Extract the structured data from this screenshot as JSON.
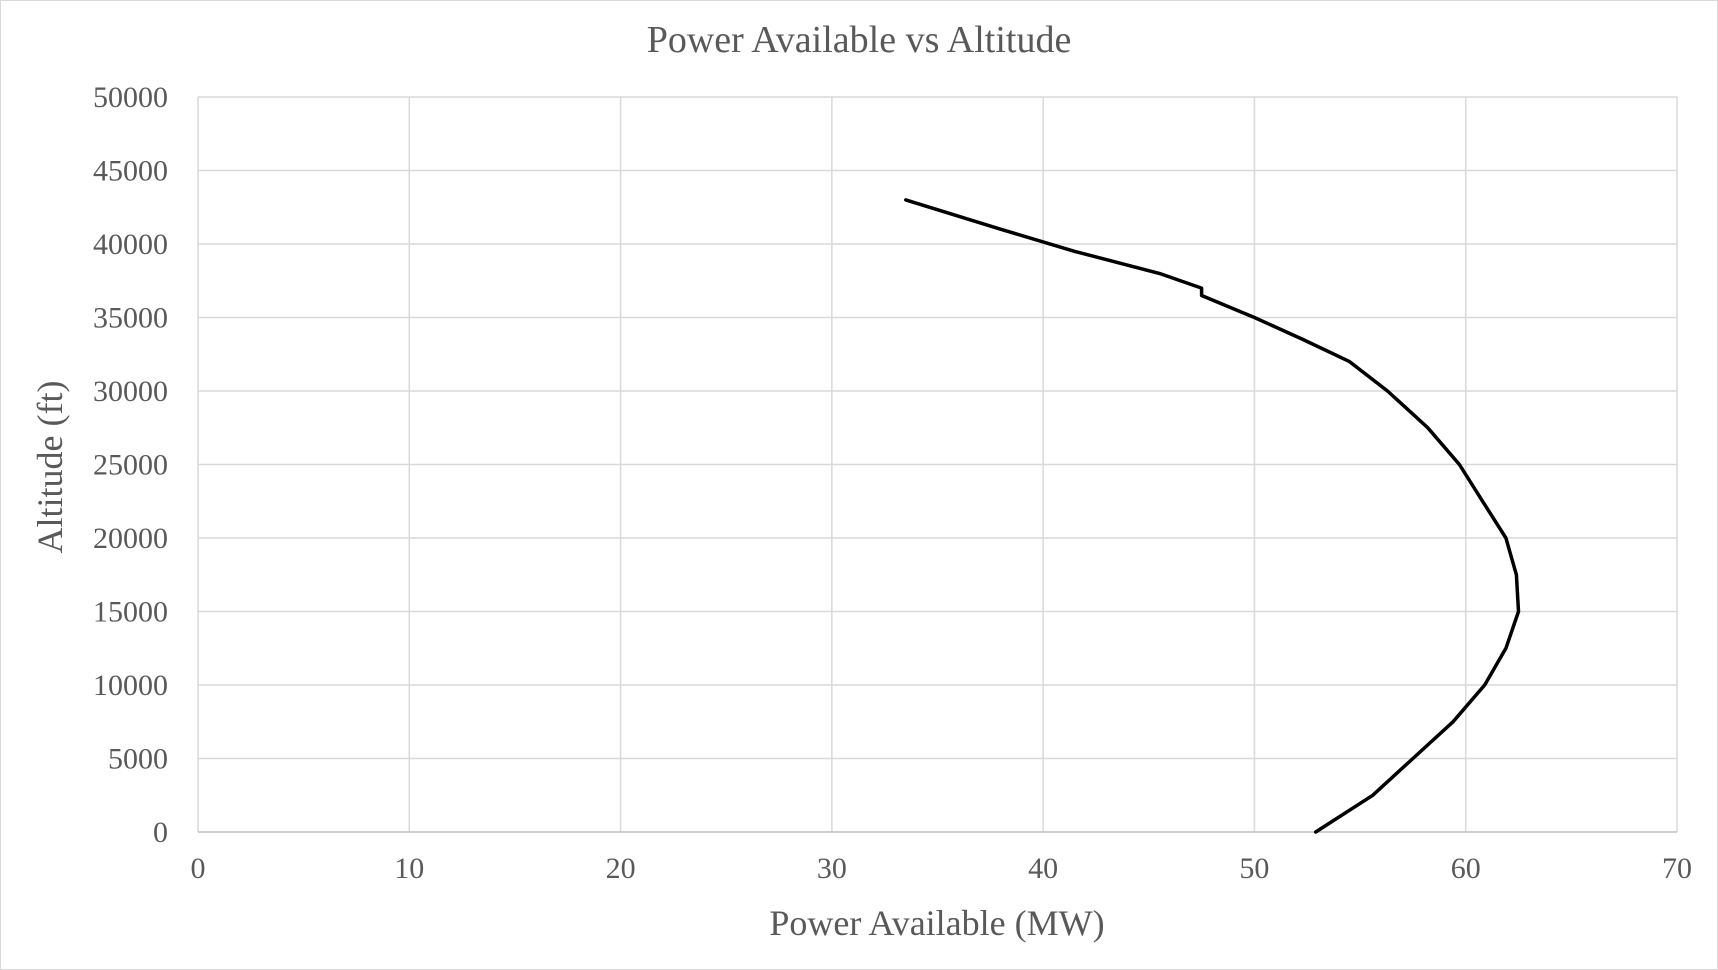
{
  "chart_data": {
    "type": "line",
    "title": "Power Available vs Altitude",
    "xlabel": "Power Available (MW)",
    "ylabel": "Altitude (ft)",
    "xlim": [
      0,
      70
    ],
    "ylim": [
      0,
      50000
    ],
    "xticks": [
      "0",
      "10",
      "20",
      "30",
      "40",
      "50",
      "60",
      "70"
    ],
    "yticks": [
      "0",
      "5000",
      "10000",
      "15000",
      "20000",
      "25000",
      "30000",
      "35000",
      "40000",
      "45000",
      "50000"
    ],
    "grid": true,
    "legend": "none",
    "series": [
      {
        "color": "#000000",
        "points": [
          {
            "x": 52.9,
            "y": 0
          },
          {
            "x": 55.6,
            "y": 2500
          },
          {
            "x": 57.5,
            "y": 5000
          },
          {
            "x": 59.4,
            "y": 7500
          },
          {
            "x": 60.9,
            "y": 10000
          },
          {
            "x": 61.9,
            "y": 12500
          },
          {
            "x": 62.5,
            "y": 15000
          },
          {
            "x": 62.4,
            "y": 17500
          },
          {
            "x": 61.9,
            "y": 20000
          },
          {
            "x": 60.8,
            "y": 22500
          },
          {
            "x": 59.7,
            "y": 25000
          },
          {
            "x": 58.2,
            "y": 27500
          },
          {
            "x": 56.3,
            "y": 30000
          },
          {
            "x": 54.5,
            "y": 32000
          },
          {
            "x": 52.3,
            "y": 33500
          },
          {
            "x": 50.0,
            "y": 35000
          },
          {
            "x": 47.5,
            "y": 36500
          },
          {
            "x": 47.5,
            "y": 37000
          },
          {
            "x": 45.5,
            "y": 38000
          },
          {
            "x": 41.5,
            "y": 39500
          },
          {
            "x": 38.0,
            "y": 41000
          },
          {
            "x": 33.5,
            "y": 43000
          }
        ]
      }
    ]
  }
}
